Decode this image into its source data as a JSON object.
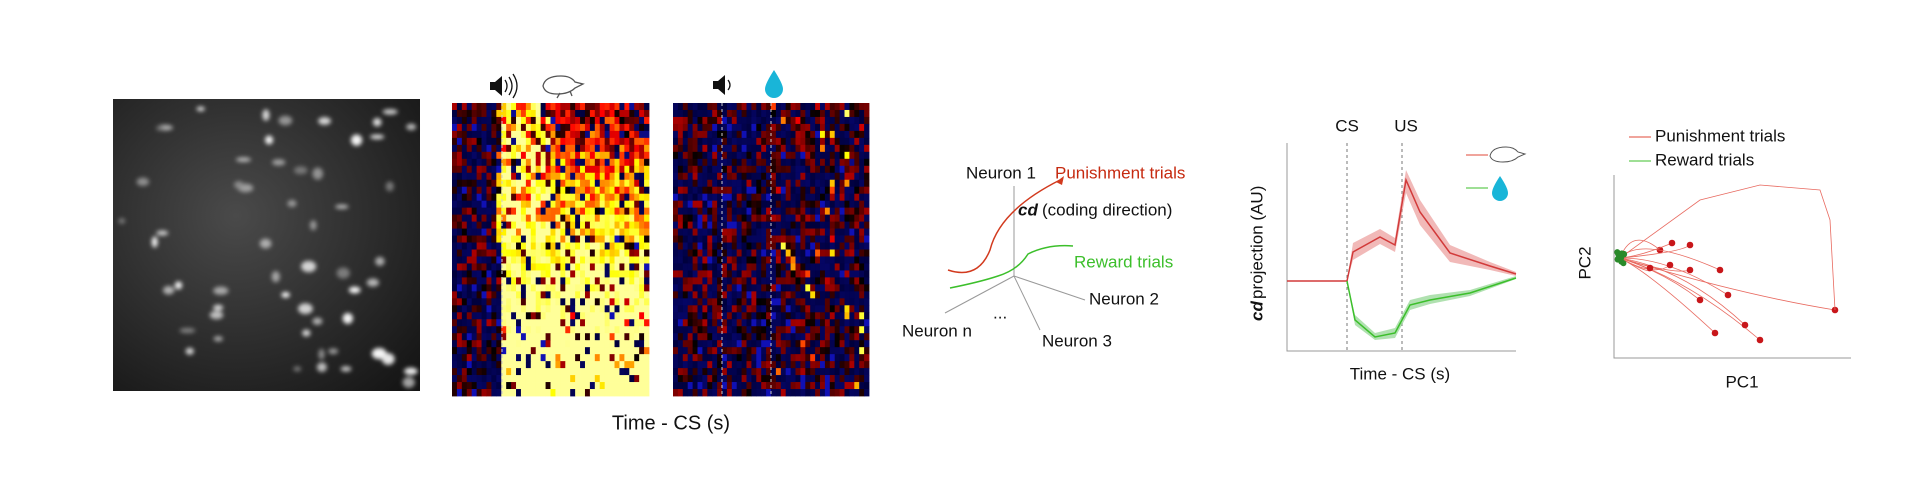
{
  "heatmaps": {
    "xlabel": "Time - CS (s)"
  },
  "diagram": {
    "neuron_1": "Neuron 1",
    "neuron_2": "Neuron 2",
    "neuron_3": "Neuron 3",
    "neuron_n": "Neuron n",
    "ellipsis": "...",
    "punishment": "Punishment trials",
    "reward": "Reward trials",
    "cd_symbol": "cd",
    "cd_text": "(coding direction)"
  },
  "projection_plot": {
    "cs": "CS",
    "us": "US",
    "ylabel_symbol": "cd",
    "ylabel_text": "projection (AU)",
    "xlabel": "Time - CS (s)"
  },
  "pca_plot": {
    "legend": [
      "Punishment trials",
      "Reward trials"
    ],
    "xlabel": "PC1",
    "ylabel": "PC2"
  }
}
